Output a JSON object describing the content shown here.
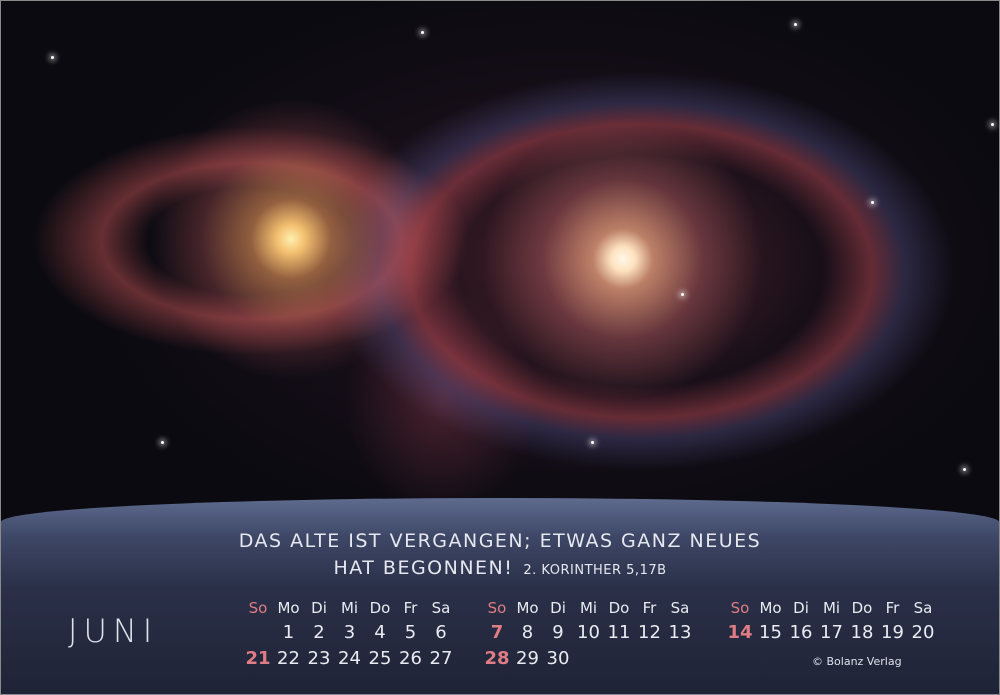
{
  "quote": {
    "line1": "DAS ALTE IST VERGANGEN; ETWAS GANZ NEUES",
    "line2": "HAT BEGONNEN!",
    "reference": "2. KORINTHER 5,17B"
  },
  "month": "JUNI",
  "weekday_headers": [
    "So",
    "Mo",
    "Di",
    "Mi",
    "Do",
    "Fr",
    "Sa"
  ],
  "blocks": [
    {
      "rows": [
        [
          "",
          "1",
          "2",
          "3",
          "4",
          "5",
          "6"
        ],
        [
          "21",
          "22",
          "23",
          "24",
          "25",
          "26",
          "27"
        ]
      ]
    },
    {
      "rows": [
        [
          "7",
          "8",
          "9",
          "10",
          "11",
          "12",
          "13"
        ],
        [
          "28",
          "29",
          "30",
          "",
          "",
          "",
          ""
        ]
      ]
    },
    {
      "rows": [
        [
          "14",
          "15",
          "16",
          "17",
          "18",
          "19",
          "20"
        ],
        [
          "",
          "",
          "",
          "",
          "",
          "",
          ""
        ]
      ]
    }
  ],
  "copyright": "© Bolanz Verlag",
  "colors": {
    "sunday": "#e07c84",
    "text": "#e9ebf1",
    "panel": "#2a3048"
  }
}
